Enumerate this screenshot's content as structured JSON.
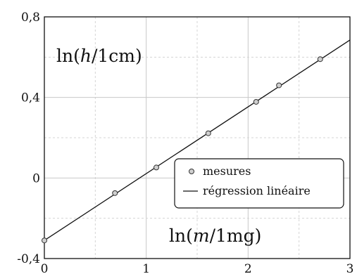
{
  "chart_data": {
    "type": "scatter",
    "xlim": [
      0,
      3
    ],
    "ylim": [
      -0.4,
      0.8
    ],
    "x_ticks": [
      0,
      1,
      2,
      3
    ],
    "x_tick_labels": [
      "0",
      "1",
      "2",
      "3"
    ],
    "y_ticks": [
      -0.4,
      0,
      0.4,
      0.8
    ],
    "y_tick_labels": [
      "-0,4",
      "0",
      "0,4",
      "0,8"
    ],
    "grid": true,
    "x_title": "ln(m/1mg)",
    "y_title": "ln(h/1cm)",
    "legend_position": "right",
    "series": [
      {
        "name": "mesures",
        "kind": "points",
        "x": [
          0,
          0.693,
          1.099,
          1.609,
          2.079,
          2.303,
          2.708
        ],
        "y": [
          -0.31,
          -0.075,
          0.052,
          0.222,
          0.378,
          0.46,
          0.59
        ]
      },
      {
        "name": "régression linéaire",
        "kind": "line",
        "x": [
          0,
          3
        ],
        "y": [
          -0.31,
          0.685
        ]
      }
    ]
  },
  "legend": {
    "points_label": "mesures",
    "line_label": "régression linéaire"
  }
}
